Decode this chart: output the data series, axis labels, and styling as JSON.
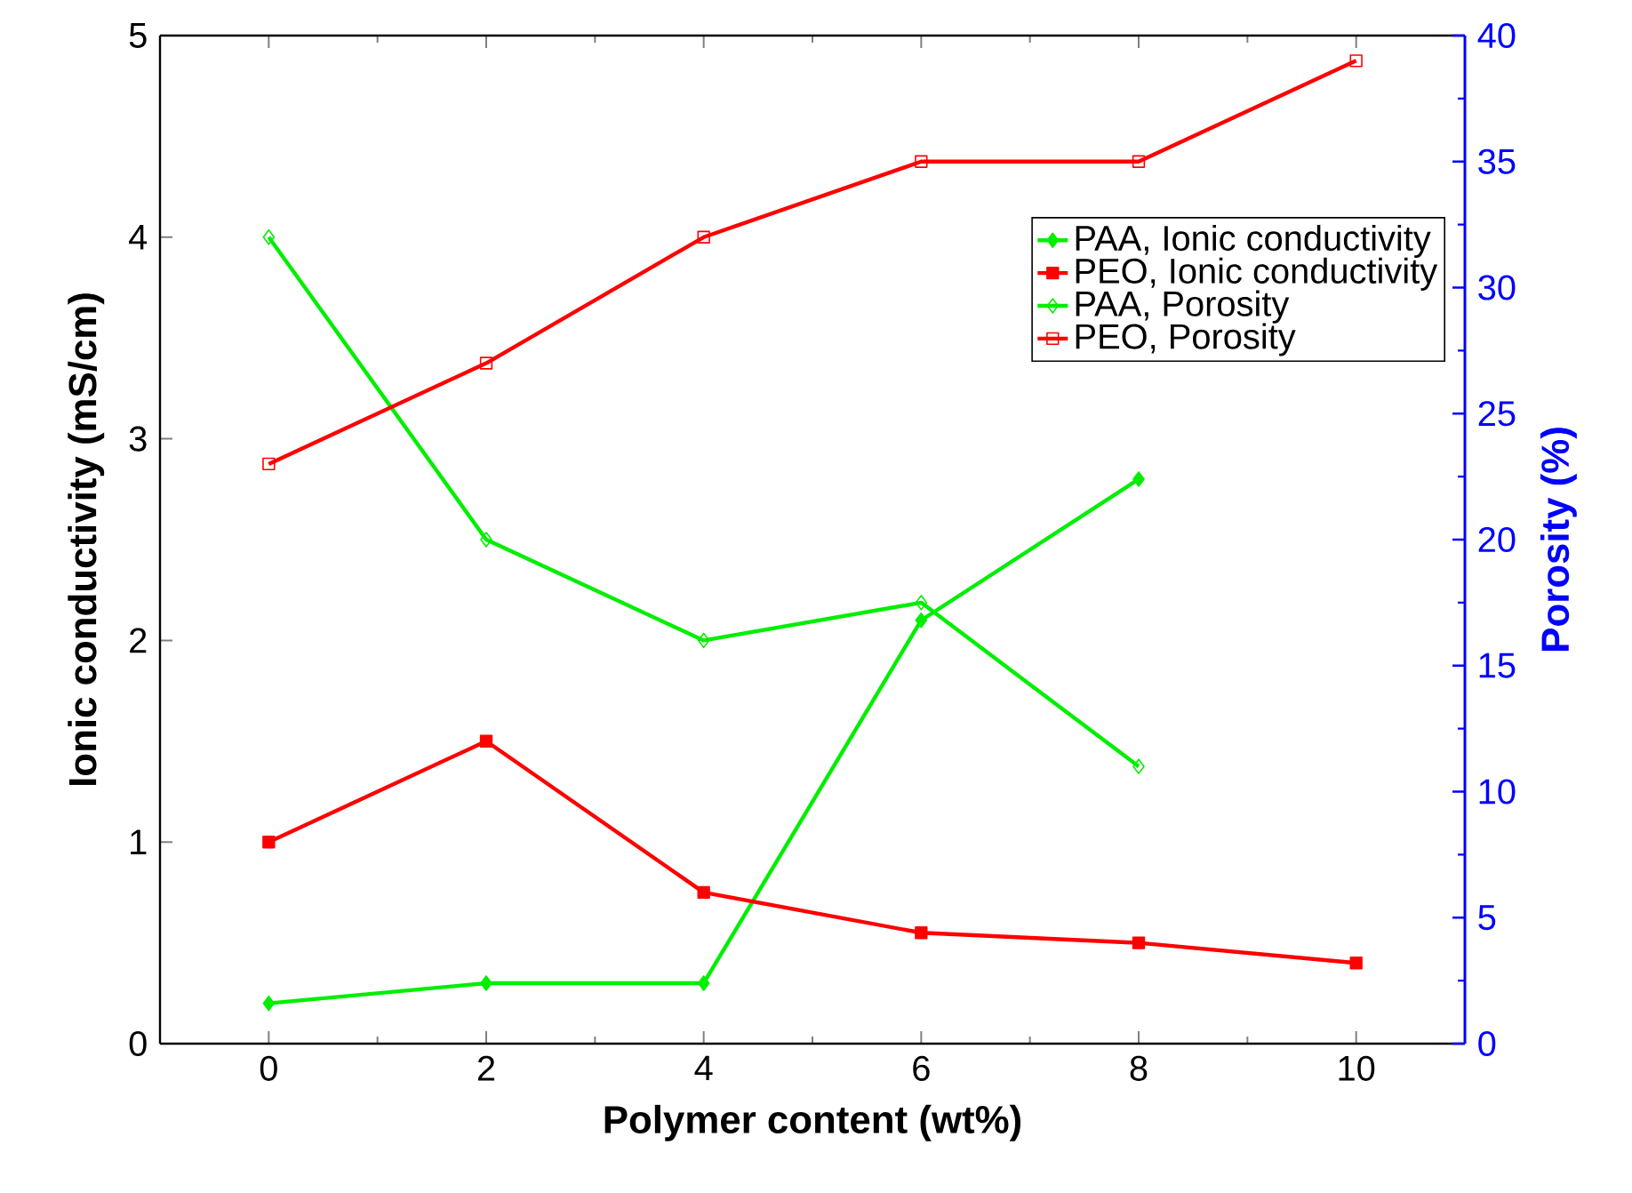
{
  "chart_data": {
    "type": "line",
    "x": [
      0,
      2,
      4,
      6,
      8,
      10
    ],
    "xlabel": "Polymer content (wt%)",
    "ylabel": "Ionic conductivity (mS/cm)",
    "y2label": "Porosity (%)",
    "xlim": [
      -1,
      11
    ],
    "xticks": [
      0,
      2,
      4,
      6,
      8,
      10
    ],
    "ylim": [
      0,
      5
    ],
    "yticks": [
      0,
      1,
      2,
      3,
      4,
      5
    ],
    "y2lim": [
      0,
      40
    ],
    "y2ticks": [
      0,
      5,
      10,
      15,
      20,
      25,
      30,
      35,
      40
    ],
    "legend": "top right",
    "grid": false,
    "line_style": "solid",
    "series": [
      {
        "name": "PAA, Ionic conductivity",
        "color": "#00ee00",
        "marker": "diamond",
        "x": [
          0,
          2,
          4,
          6,
          8
        ],
        "values": [
          0.2,
          0.3,
          0.3,
          2.1,
          2.8
        ]
      },
      {
        "name": "PEO, Ionic conductivity",
        "color": "#ff0000",
        "marker": "square",
        "values": [
          1.0,
          1.5,
          0.75,
          0.55,
          0.5,
          0.4
        ]
      },
      {
        "name": "PAA, Porosity",
        "color": "#00ee00",
        "marker": "diamond",
        "axis": "y2",
        "x": [
          0,
          2,
          4,
          6,
          8
        ],
        "values": [
          32,
          20,
          16,
          17.5,
          11
        ]
      },
      {
        "name": "PEO, Porosity",
        "color": "#ff0000",
        "marker": "square",
        "axis": "y2",
        "values": [
          23,
          27,
          32,
          35,
          35,
          39
        ]
      }
    ]
  }
}
